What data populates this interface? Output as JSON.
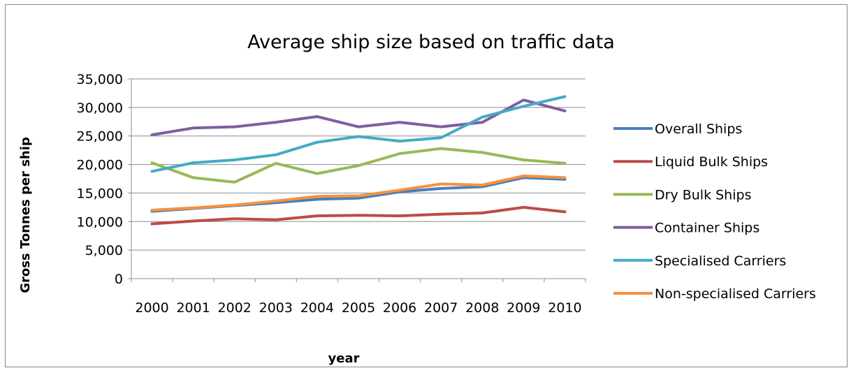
{
  "chart_data": {
    "type": "line",
    "title": "Average ship size based on traffic data",
    "xlabel": "year",
    "ylabel": "Gross Tonnes per ship",
    "categories": [
      "2000",
      "2001",
      "2002",
      "2003",
      "2004",
      "2005",
      "2006",
      "2007",
      "2008",
      "2009",
      "2010"
    ],
    "ylim": [
      0,
      35000
    ],
    "yticks": [
      0,
      5000,
      10000,
      15000,
      20000,
      25000,
      30000,
      35000
    ],
    "ytick_labels": [
      "0",
      "5,000",
      "10,000",
      "15,000",
      "20,000",
      "25,000",
      "30,000",
      "35,000"
    ],
    "grid": "horizontal",
    "legend_position": "right",
    "series": [
      {
        "name": "Overall Ships",
        "color": "#4a7ebb",
        "values": [
          11800,
          12300,
          12800,
          13300,
          13900,
          14100,
          15200,
          15800,
          16100,
          17700,
          17400
        ]
      },
      {
        "name": "Liquid Bulk Ships",
        "color": "#be4b48",
        "values": [
          9600,
          10100,
          10500,
          10300,
          11000,
          11100,
          11000,
          11300,
          11500,
          12500,
          11700
        ]
      },
      {
        "name": "Dry Bulk Ships",
        "color": "#98b954",
        "values": [
          20300,
          17700,
          16900,
          20200,
          18400,
          19800,
          21900,
          22800,
          22100,
          20800,
          20200
        ]
      },
      {
        "name": "Container Ships",
        "color": "#7d5fa0",
        "values": [
          25200,
          26400,
          26600,
          27400,
          28400,
          26600,
          27400,
          26600,
          27400,
          31300,
          29400
        ]
      },
      {
        "name": "Specialised Carriers",
        "color": "#46aac5",
        "values": [
          18800,
          20300,
          20800,
          21700,
          23900,
          24900,
          24100,
          24700,
          28300,
          30200,
          31900
        ]
      },
      {
        "name": "Non-specialised Carriers",
        "color": "#f69240",
        "values": [
          12000,
          12400,
          12900,
          13600,
          14400,
          14500,
          15500,
          16600,
          16400,
          18000,
          17700
        ]
      }
    ]
  }
}
